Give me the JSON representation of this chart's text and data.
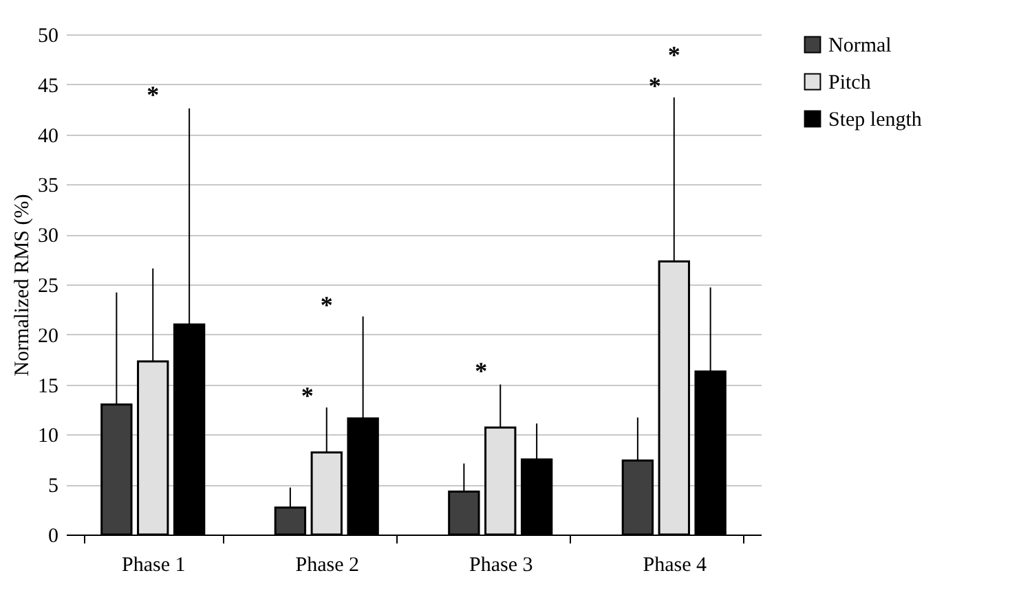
{
  "chart_data": {
    "type": "bar",
    "ylabel": "Normalized RMS (%)",
    "categories": [
      "Phase 1",
      "Phase 2",
      "Phase 3",
      "Phase 4"
    ],
    "series": [
      {
        "name": "Normal",
        "color": "#404040",
        "values": [
          13,
          2.7,
          4.3,
          7.4
        ],
        "errors": [
          [
            13,
            24.2
          ],
          [
            2.7,
            4.7
          ],
          [
            4.3,
            7.1
          ],
          [
            7.4,
            11.7
          ]
        ]
      },
      {
        "name": "Pitch",
        "color": "#e0e0e0",
        "values": [
          17.3,
          8.2,
          10.7,
          27.3
        ],
        "errors": [
          [
            17.3,
            26.6
          ],
          [
            8.2,
            12.7
          ],
          [
            10.7,
            15
          ],
          [
            27.3,
            43.7
          ]
        ]
      },
      {
        "name": "Step length",
        "color": "#000000",
        "values": [
          21,
          11.6,
          7.5,
          16.3
        ],
        "errors": [
          [
            21,
            42.6
          ],
          [
            11.6,
            21.8
          ],
          [
            7.5,
            11.1
          ],
          [
            16.3,
            24.7
          ]
        ]
      }
    ],
    "ylim": [
      0,
      50
    ],
    "yticks": [
      0,
      5,
      10,
      15,
      20,
      25,
      30,
      35,
      40,
      45,
      50
    ],
    "grid": "y",
    "legend": "right",
    "annotations": [
      "*",
      "*",
      "*",
      "*",
      "*",
      "*"
    ]
  }
}
